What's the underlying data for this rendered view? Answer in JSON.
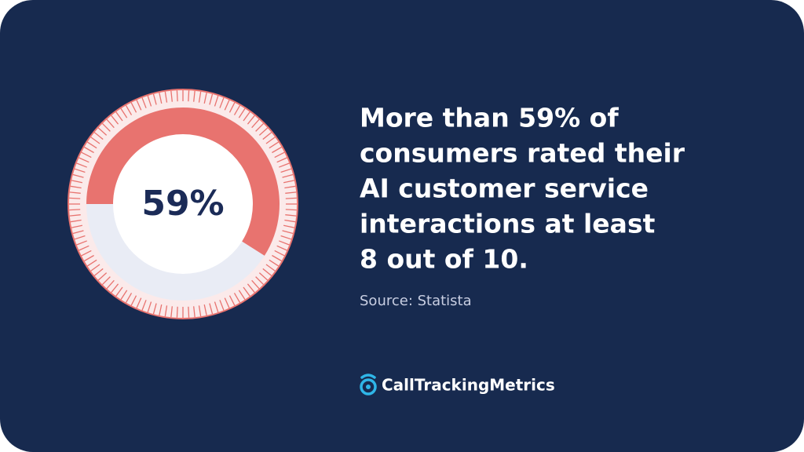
{
  "chart_data": {
    "type": "donut",
    "values": [
      59,
      41
    ],
    "value_labels": [
      "59%",
      null
    ],
    "colors": [
      "#e8736f",
      "#e9ecf5"
    ]
  },
  "headline": [
    "More than 59% of",
    "consumers rated their",
    "AI customer service",
    "interactions at least",
    "8 out of 10."
  ],
  "source": "Source: Statista",
  "brand": "CallTrackingMetrics"
}
